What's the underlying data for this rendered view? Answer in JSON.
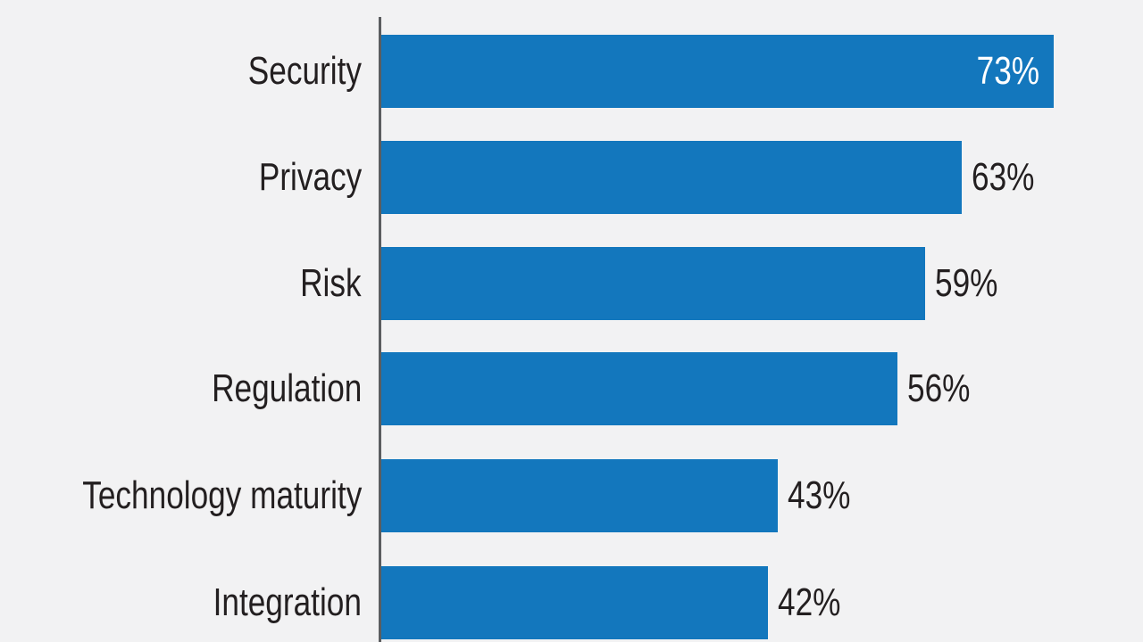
{
  "chart_data": {
    "type": "bar",
    "orientation": "horizontal",
    "title": "",
    "categories": [
      "Security",
      "Privacy",
      "Risk",
      "Regulation",
      "Technology maturity",
      "Integration"
    ],
    "values": [
      73,
      63,
      59,
      56,
      43,
      42
    ],
    "value_labels": [
      "73%",
      "63%",
      "59%",
      "56%",
      "43%",
      "42%"
    ],
    "value_label_placement": [
      "inside",
      "outside",
      "outside",
      "outside",
      "outside",
      "outside"
    ],
    "xlim": [
      0,
      100
    ],
    "grid": false,
    "legend": false,
    "colors": {
      "bar": "#1377bd",
      "background": "#f2f2f3",
      "axis": "#5b5d5f",
      "category_text": "#231f20",
      "value_text_inside": "#ffffff",
      "value_text_outside": "#231f20"
    }
  }
}
